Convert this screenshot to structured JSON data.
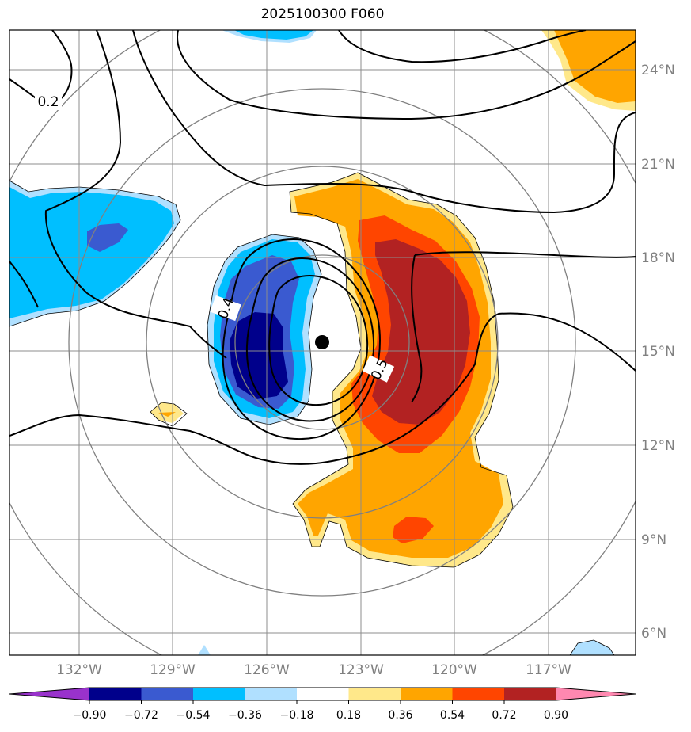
{
  "title": "2025100300 F060",
  "lat_labels": [
    "24°N",
    "21°N",
    "18°N",
    "15°N",
    "12°N",
    "9°N",
    "6°N"
  ],
  "lon_labels": [
    "132°W",
    "129°W",
    "126°W",
    "123°W",
    "120°W",
    "117°W"
  ],
  "contour_labels": [
    "0.2",
    "0.4",
    "0.5"
  ],
  "colorbar": {
    "ticks": [
      "−0.90",
      "−0.72",
      "−0.54",
      "−0.36",
      "−0.18",
      "0.18",
      "0.36",
      "0.54",
      "0.72",
      "0.90"
    ],
    "colors": [
      "#9932cc",
      "#00008b",
      "#3a5ad0",
      "#00bfff",
      "#b0e0ff",
      "#ffffff",
      "#ffe88a",
      "#ffa500",
      "#ff4500",
      "#b22222",
      "#ff88b0"
    ]
  },
  "colors": {
    "dark_blue": "#00008b",
    "mid_blue": "#3a5ad0",
    "sky_blue": "#00bfff",
    "light_blue": "#b0e0ff",
    "light_yellow": "#ffe88a",
    "orange": "#ffa500",
    "orange_red": "#ff4500",
    "dark_red": "#b22222",
    "grid": "#8c8c8c",
    "label": "#808080"
  }
}
